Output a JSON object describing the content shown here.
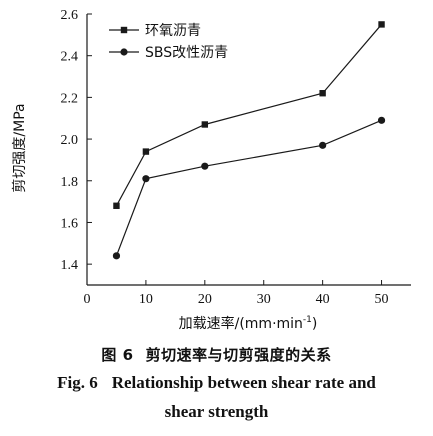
{
  "chart_data": {
    "type": "line",
    "x": [
      5,
      10,
      20,
      40,
      50
    ],
    "series": [
      {
        "name": "环氧沥青",
        "marker": "square",
        "values": [
          1.68,
          1.94,
          2.07,
          2.22,
          2.55
        ]
      },
      {
        "name": "SBS改性沥青",
        "marker": "circle",
        "values": [
          1.44,
          1.81,
          1.87,
          1.97,
          2.09
        ]
      }
    ],
    "xlabel_prefix": "加载速率/(mm·min",
    "xlabel_sup": "-1",
    "xlabel_suffix": ")",
    "ylabel": "剪切强度/MPa",
    "xlim": [
      0,
      55
    ],
    "ylim": [
      1.3,
      2.6
    ],
    "xticks": [
      0,
      10,
      20,
      30,
      40,
      50
    ],
    "yticks": [
      1.4,
      1.6,
      1.8,
      2.0,
      2.2,
      2.4,
      2.6
    ],
    "ytick_labels": [
      "1.4",
      "1.6",
      "1.8",
      "2.0",
      "2.2",
      "2.4",
      "2.6"
    ],
    "grid": false,
    "legend_position": "top-left",
    "line_color": "#1a1a1a"
  },
  "caption": {
    "cn_number": "图 6",
    "cn_text": "剪切速率与切剪强度的关系",
    "en_number": "Fig. 6",
    "en_line1": "Relationship between shear rate and",
    "en_line2": "shear strength"
  }
}
